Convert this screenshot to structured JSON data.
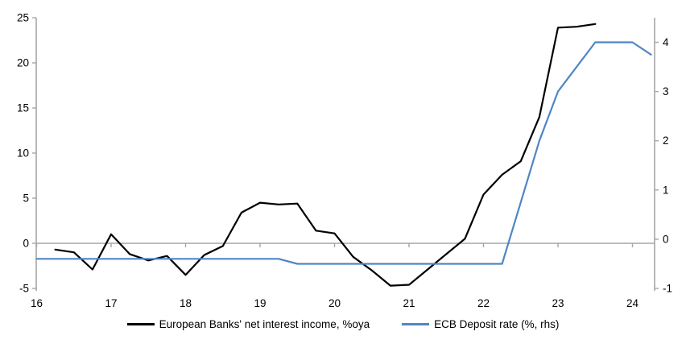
{
  "chart_data": {
    "type": "line",
    "title": "",
    "x_axis": {
      "labels": [
        "16",
        "17",
        "18",
        "19",
        "20",
        "21",
        "22",
        "23",
        "24"
      ],
      "values": [
        16,
        17,
        18,
        19,
        20,
        21,
        22,
        23,
        24
      ],
      "range": [
        16,
        24.3
      ]
    },
    "left_axis": {
      "ticks": [
        -5,
        0,
        5,
        10,
        15,
        20,
        25
      ],
      "range": [
        -5,
        25
      ]
    },
    "right_axis": {
      "ticks": [
        -1,
        0,
        1,
        2,
        3,
        4
      ],
      "range": [
        -1,
        4.5
      ]
    },
    "grid": "zero-line-only",
    "legend_position": "bottom",
    "series": [
      {
        "name": "European Banks' net interest income, %oya",
        "axis": "left",
        "color": "#000000",
        "x": [
          16.25,
          16.5,
          16.75,
          17.0,
          17.25,
          17.5,
          17.75,
          18.0,
          18.25,
          18.5,
          18.75,
          19.0,
          19.25,
          19.5,
          19.75,
          20.0,
          20.25,
          20.5,
          20.75,
          21.0,
          21.25,
          21.5,
          21.75,
          22.0,
          22.25,
          22.5,
          22.75,
          23.0,
          23.25,
          23.5
        ],
        "y": [
          -0.7,
          -1.0,
          -2.9,
          1.0,
          -1.2,
          -1.9,
          -1.4,
          -3.5,
          -1.3,
          -0.3,
          3.4,
          4.5,
          4.3,
          4.4,
          1.4,
          1.1,
          -1.5,
          -3.0,
          -4.7,
          -4.6,
          -2.9,
          -1.2,
          0.5,
          5.4,
          7.6,
          9.1,
          14.0,
          23.9,
          24.0,
          24.3
        ]
      },
      {
        "name": "ECB Deposit rate (%, rhs)",
        "axis": "right",
        "color": "#4f86c5",
        "x": [
          16.0,
          16.25,
          16.5,
          16.75,
          17.0,
          17.25,
          17.5,
          17.75,
          18.0,
          18.25,
          18.5,
          18.75,
          19.0,
          19.25,
          19.5,
          19.75,
          20.0,
          20.25,
          20.5,
          20.75,
          21.0,
          21.25,
          21.5,
          21.75,
          22.0,
          22.25,
          22.5,
          22.75,
          23.0,
          23.25,
          23.5,
          23.75,
          24.0,
          24.25
        ],
        "y": [
          -0.4,
          -0.4,
          -0.4,
          -0.4,
          -0.4,
          -0.4,
          -0.4,
          -0.4,
          -0.4,
          -0.4,
          -0.4,
          -0.4,
          -0.4,
          -0.4,
          -0.5,
          -0.5,
          -0.5,
          -0.5,
          -0.5,
          -0.5,
          -0.5,
          -0.5,
          -0.5,
          -0.5,
          -0.5,
          -0.5,
          0.75,
          2.0,
          3.0,
          3.5,
          4.0,
          4.0,
          4.0,
          3.75
        ]
      }
    ],
    "colors": {
      "axis_gray": "#a6a6a6",
      "text": "#000000",
      "background": "#ffffff"
    }
  }
}
